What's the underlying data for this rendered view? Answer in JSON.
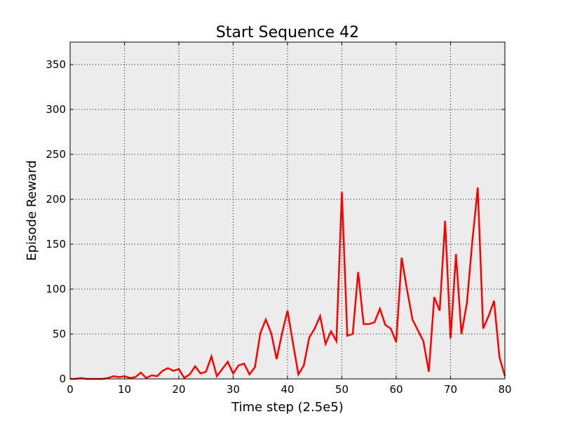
{
  "chart_data": {
    "type": "line",
    "title": "Start Sequence 42",
    "xlabel": "Time step (2.5e5)",
    "ylabel": "Episode Reward",
    "xlim": [
      0,
      80
    ],
    "ylim": [
      0,
      375
    ],
    "xticks": [
      0,
      10,
      20,
      30,
      40,
      50,
      60,
      70,
      80
    ],
    "yticks": [
      0,
      50,
      100,
      150,
      200,
      250,
      300,
      350
    ],
    "grid": true,
    "legend": "none",
    "colors": {
      "line": "#ff0000",
      "plot_bg": "#ececec"
    },
    "series": [
      {
        "x": [
          0,
          1,
          2,
          3,
          4,
          5,
          6,
          7,
          8,
          9,
          10,
          11,
          12,
          13,
          14,
          15,
          16,
          17,
          18,
          19,
          20,
          21,
          22,
          23,
          24,
          25,
          26,
          27,
          28,
          29,
          30,
          31,
          32,
          33,
          34,
          35,
          36,
          37,
          38,
          39,
          40,
          41,
          42,
          43,
          44,
          45,
          46,
          47,
          48,
          49,
          50,
          51,
          52,
          53,
          54,
          55,
          56,
          57,
          58,
          59,
          60,
          61,
          62,
          63,
          64,
          65,
          66,
          67,
          68,
          69,
          70,
          71,
          72,
          73,
          74,
          75,
          76,
          77,
          78,
          79,
          80
        ],
        "y": [
          0,
          0,
          1,
          0,
          0,
          0,
          0,
          1,
          3,
          2,
          3,
          1,
          2,
          7,
          1,
          4,
          3,
          9,
          12,
          9,
          11,
          1,
          5,
          14,
          6,
          8,
          25,
          3,
          11,
          19,
          6,
          15,
          17,
          5,
          13,
          51,
          66,
          51,
          22,
          51,
          76,
          40,
          5,
          15,
          46,
          56,
          70,
          39,
          53,
          42,
          208,
          48,
          50,
          119,
          61,
          61,
          63,
          78,
          60,
          56,
          41,
          135,
          99,
          66,
          54,
          42,
          8,
          91,
          76,
          176,
          45,
          139,
          50,
          84,
          153,
          213,
          56,
          70,
          87,
          24,
          3
        ]
      }
    ]
  }
}
